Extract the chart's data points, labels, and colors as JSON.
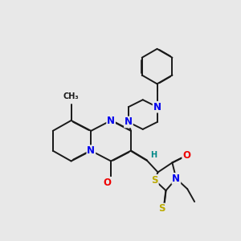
{
  "bg_color": "#e8e8e8",
  "bond_color": "#1a1a1a",
  "bond_width": 1.4,
  "dbo": 0.012,
  "atom_colors": {
    "N": "#0000ee",
    "O": "#ee0000",
    "S": "#bbaa00",
    "H": "#008888",
    "C": "#1a1a1a"
  },
  "fs": 8.5,
  "fss": 7.0
}
